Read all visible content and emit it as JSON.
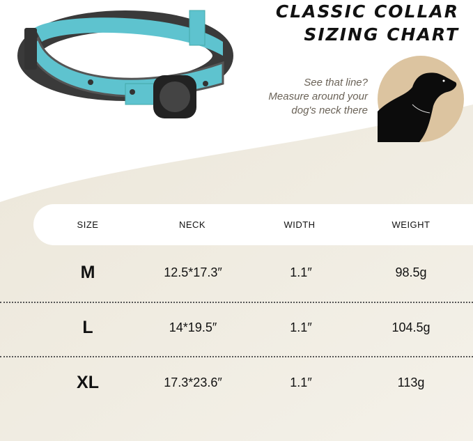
{
  "title": {
    "line1": "CLASSIC COLLAR",
    "line2": "SIZING CHART"
  },
  "hint": {
    "line1": "See that line?",
    "line2": "Measure around your",
    "line3": "dog's neck there"
  },
  "colors": {
    "collar": "#5ec3cf",
    "dog_circle": "#dcc4a0",
    "table_bg": "#f1ede3"
  },
  "table": {
    "headers": [
      "SIZE",
      "NECK",
      "WIDTH",
      "WEIGHT"
    ],
    "rows": [
      {
        "size": "M",
        "neck": "12.5*17.3″",
        "width": "1.1″",
        "weight": "98.5g"
      },
      {
        "size": "L",
        "neck": "14*19.5″",
        "width": "1.1″",
        "weight": "104.5g"
      },
      {
        "size": "XL",
        "neck": "17.3*23.6″",
        "width": "1.1″",
        "weight": "113g"
      }
    ]
  }
}
